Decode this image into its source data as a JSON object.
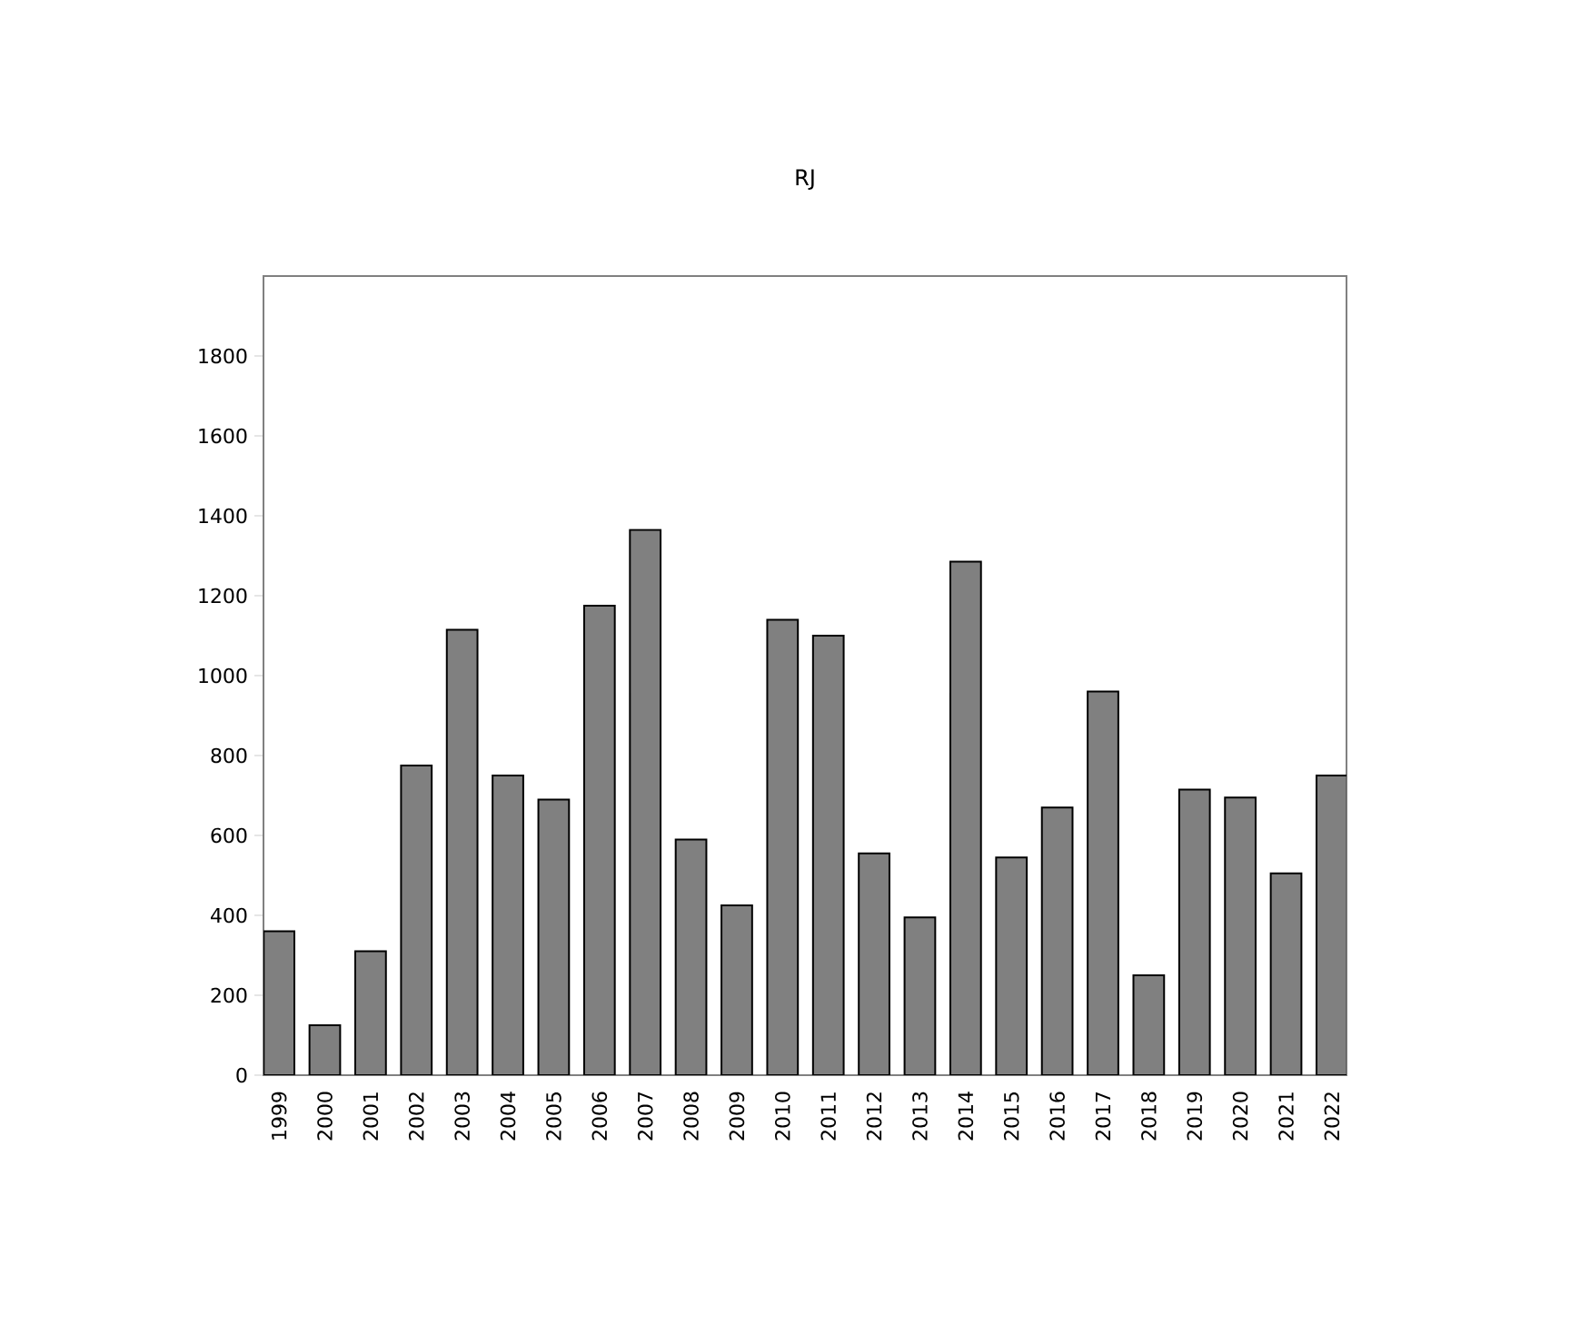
{
  "chart_data": {
    "type": "bar",
    "title": "RJ",
    "categories": [
      "1999",
      "2000",
      "2001",
      "2002",
      "2003",
      "2004",
      "2005",
      "2006",
      "2007",
      "2008",
      "2009",
      "2010",
      "2011",
      "2012",
      "2013",
      "2014",
      "2015",
      "2016",
      "2017",
      "2018",
      "2019",
      "2020",
      "2021",
      "2022"
    ],
    "values": [
      360,
      125,
      310,
      775,
      1115,
      750,
      690,
      1175,
      1365,
      590,
      425,
      1140,
      1100,
      555,
      395,
      1285,
      545,
      670,
      960,
      250,
      715,
      695,
      505,
      750
    ],
    "color": "#808080",
    "ylim": [
      0,
      2000
    ],
    "yticks": [
      0,
      200,
      400,
      600,
      800,
      1000,
      1200,
      1400,
      1600,
      1800
    ],
    "grid": false
  }
}
